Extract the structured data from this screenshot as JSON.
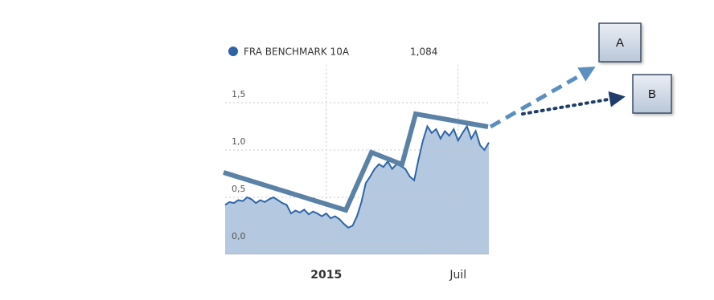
{
  "chart_data": {
    "type": "area",
    "series": [
      {
        "name": "FRA BENCHMARK 10A",
        "color": "#2e64a6",
        "fill": "#b4c9e0",
        "latest_value": 1.084,
        "latest_value_label": "1,084",
        "values": [
          0.42,
          0.45,
          0.44,
          0.47,
          0.46,
          0.5,
          0.48,
          0.44,
          0.47,
          0.45,
          0.48,
          0.5,
          0.47,
          0.44,
          0.42,
          0.33,
          0.36,
          0.34,
          0.37,
          0.32,
          0.35,
          0.33,
          0.3,
          0.33,
          0.28,
          0.3,
          0.27,
          0.22,
          0.18,
          0.2,
          0.3,
          0.45,
          0.65,
          0.72,
          0.8,
          0.85,
          0.82,
          0.88,
          0.8,
          0.85,
          0.83,
          0.8,
          0.72,
          0.68,
          0.9,
          1.1,
          1.25,
          1.18,
          1.22,
          1.12,
          1.2,
          1.15,
          1.22,
          1.1,
          1.18,
          1.25,
          1.12,
          1.2,
          1.05,
          1.0,
          1.08
        ]
      }
    ],
    "xlim": [
      0,
      60
    ],
    "xticks": [
      {
        "value": 23,
        "label": "2015"
      },
      {
        "value": 53,
        "label": "Juil"
      }
    ],
    "ylim": [
      -0.1,
      1.9
    ],
    "yticks": [
      {
        "value": 0,
        "label": "0,0"
      },
      {
        "value": 0.5,
        "label": "0,5"
      },
      {
        "value": 1,
        "label": "1,0"
      },
      {
        "value": 1.5,
        "label": "1,5"
      }
    ],
    "grid": true,
    "annotations": [
      "A",
      "B"
    ]
  }
}
